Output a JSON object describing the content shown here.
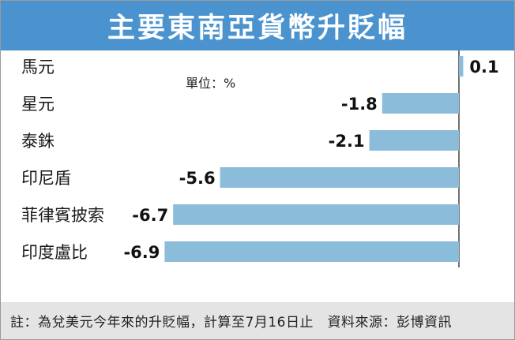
{
  "header": {
    "title": "主要東南亞貨幣升貶幅"
  },
  "unit_label": "單位：%",
  "footer": {
    "note": "註：為兌美元今年來的升貶幅，計算至7月16日止　資料來源：彭博資訊"
  },
  "colors": {
    "title_bg": "#4a93cf",
    "bar": "#8bbcd9",
    "axis": "#444444",
    "note_bg": "#e4e4e4"
  },
  "chart_data": {
    "type": "bar",
    "orientation": "horizontal",
    "categories": [
      "馬元",
      "星元",
      "泰銖",
      "印尼盾",
      "菲律賓披索",
      "印度盧比"
    ],
    "values": [
      0.1,
      -1.8,
      -2.1,
      -5.6,
      -6.7,
      -6.9
    ],
    "value_labels": [
      "0.1",
      "-1.8",
      "-2.1",
      "-5.6",
      "-6.7",
      "-6.9"
    ],
    "title": "主要東南亞貨幣升貶幅",
    "xlim": [
      -6.9,
      0.1
    ],
    "grid": false,
    "legend": "none"
  }
}
